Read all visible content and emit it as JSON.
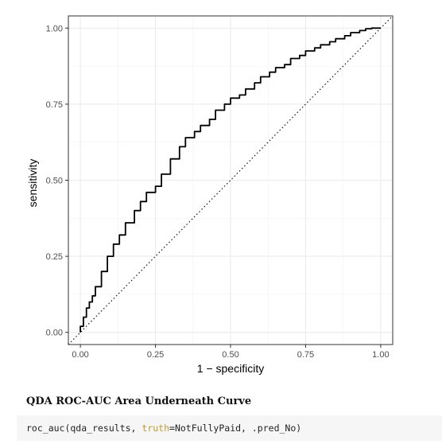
{
  "chart_data": {
    "type": "line",
    "title": "",
    "xlabel": "1 − specificity",
    "ylabel": "sensitivity",
    "xlim": [
      -0.04,
      1.04
    ],
    "ylim": [
      -0.04,
      1.04
    ],
    "xticks": [
      "0.00",
      "0.25",
      "0.50",
      "0.75",
      "1.00"
    ],
    "yticks": [
      "0.00",
      "0.25",
      "0.50",
      "0.75",
      "1.00"
    ],
    "grid": true,
    "theme": "bw",
    "reference_line": {
      "style": "dotted",
      "from": [
        0,
        0
      ],
      "to": [
        1,
        1
      ]
    },
    "series": [
      {
        "x": [
          0.0,
          0.01,
          0.02,
          0.03,
          0.04,
          0.05,
          0.07,
          0.09,
          0.11,
          0.13,
          0.15,
          0.18,
          0.2,
          0.22,
          0.25,
          0.27,
          0.3,
          0.33,
          0.35,
          0.38,
          0.4,
          0.43,
          0.45,
          0.48,
          0.5,
          0.53,
          0.55,
          0.58,
          0.6,
          0.63,
          0.65,
          0.68,
          0.7,
          0.73,
          0.75,
          0.78,
          0.8,
          0.83,
          0.85,
          0.88,
          0.9,
          0.93,
          0.95,
          0.97,
          1.0
        ],
        "y": [
          0.0,
          0.02,
          0.05,
          0.08,
          0.1,
          0.12,
          0.15,
          0.2,
          0.25,
          0.29,
          0.32,
          0.36,
          0.4,
          0.43,
          0.46,
          0.48,
          0.52,
          0.57,
          0.61,
          0.64,
          0.66,
          0.68,
          0.7,
          0.73,
          0.75,
          0.77,
          0.78,
          0.8,
          0.82,
          0.84,
          0.855,
          0.87,
          0.88,
          0.9,
          0.91,
          0.925,
          0.935,
          0.945,
          0.955,
          0.965,
          0.975,
          0.985,
          0.992,
          0.998,
          1.0
        ]
      }
    ]
  },
  "section_heading": "QDA ROC-AUC Area Underneath Curve",
  "code": {
    "prefix": "roc_auc(qda_results, ",
    "keyword": "truth",
    "suffix": "=NotFullyPaid, .pred_No)"
  }
}
